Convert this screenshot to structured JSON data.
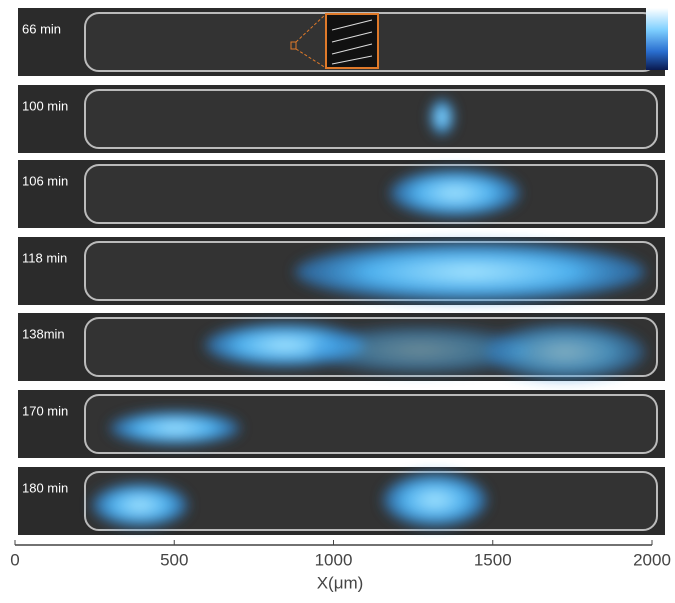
{
  "chart_data": {
    "type": "strips",
    "panels": [
      "66 min",
      "100 min",
      "106 min",
      "118 min",
      "138min",
      "170 min",
      "180 min"
    ],
    "xlim": [
      0,
      2000
    ],
    "xticks": [
      0,
      500,
      1000,
      1500,
      2000
    ],
    "xlabel": "X(μm)"
  }
}
